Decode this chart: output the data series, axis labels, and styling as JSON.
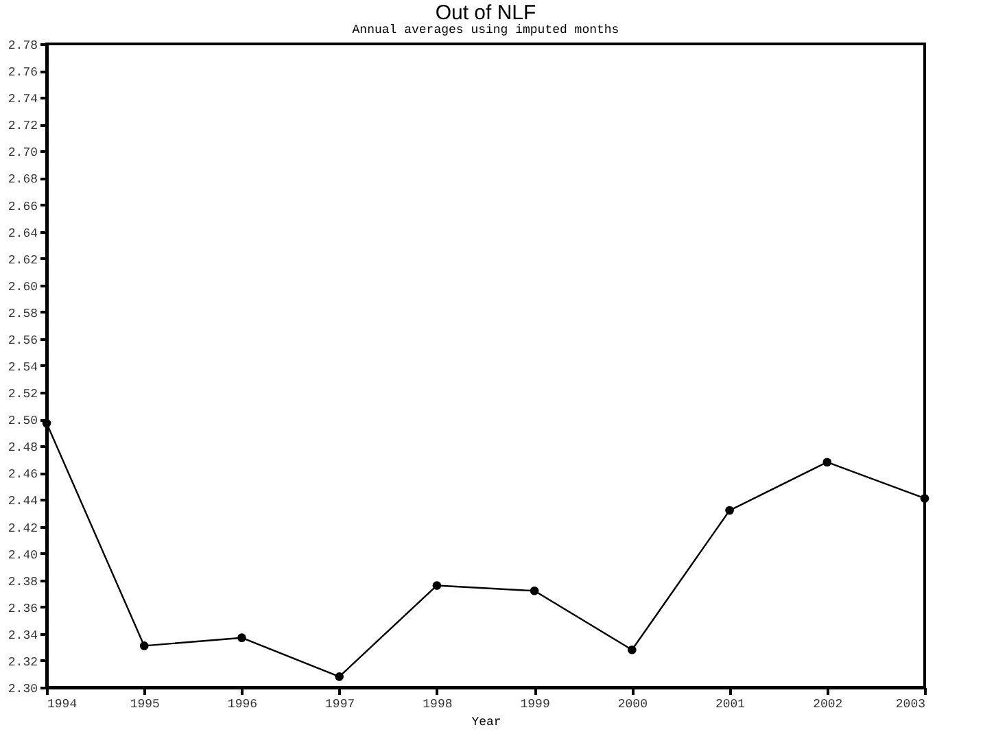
{
  "chart_data": {
    "type": "line",
    "title": "Out of NLF",
    "subtitle": "Annual averages using imputed months",
    "xlabel": "Year",
    "x": [
      1994,
      1995,
      1996,
      1997,
      1998,
      1999,
      2000,
      2001,
      2002,
      2003
    ],
    "series": [
      {
        "color": "#000000",
        "values": [
          2.497,
          2.331,
          2.337,
          2.308,
          2.376,
          2.372,
          2.328,
          2.432,
          2.468,
          2.441
        ]
      }
    ],
    "xlim": [
      1994,
      2003
    ],
    "xticks": [
      1994,
      1995,
      1996,
      1997,
      1998,
      1999,
      2000,
      2001,
      2002,
      2003
    ],
    "ylim": [
      2.3,
      2.78
    ],
    "yticks": [
      {
        "value": 2.3,
        "label": "2.30"
      },
      2.32,
      2.34,
      2.36,
      2.38,
      {
        "value": 2.4,
        "label": "2.40"
      },
      2.42,
      2.44,
      2.46,
      2.48,
      {
        "value": 2.5,
        "label": "2.50"
      },
      2.52,
      2.54,
      2.56,
      2.58,
      {
        "value": 2.6,
        "label": "2.60"
      },
      2.62,
      2.64,
      2.66,
      2.68,
      {
        "value": 2.7,
        "label": "2.70"
      },
      2.72,
      2.74,
      2.76,
      2.78
    ],
    "grid": false,
    "legend": false,
    "marker": "circle",
    "line_style": "solid"
  }
}
